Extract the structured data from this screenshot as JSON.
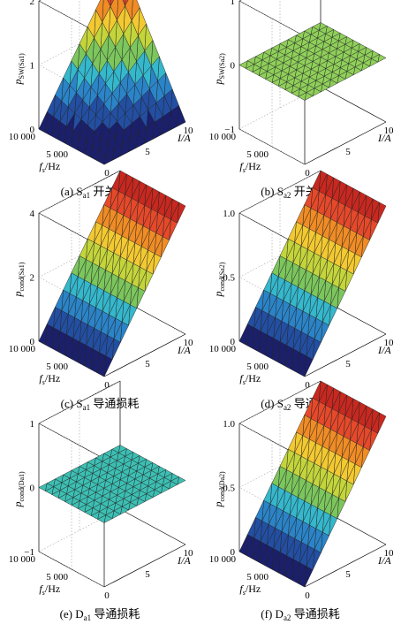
{
  "chart_data": [
    {
      "panel": "a",
      "type": "surface",
      "caption_prefix": "(a) S",
      "caption_sub": "a1",
      "caption_suffix": " 开关损耗",
      "zlabel_main": "p",
      "zlabel_sub": "SW(Sa1)",
      "xlabel": "I/A",
      "ylabel_main": "f",
      "ylabel_sub": "s",
      "ylabel_unit": "/Hz",
      "x_ticks": [
        "0",
        "5",
        "10"
      ],
      "y_ticks": [
        "10 000",
        "5 000"
      ],
      "z_ticks": [
        "0",
        "1",
        "2"
      ],
      "x_range": [
        0,
        10
      ],
      "y_range": [
        0,
        10000
      ],
      "z_range": [
        0,
        2
      ],
      "colormap": [
        "#1a1f6e",
        "#234fa3",
        "#2b84c8",
        "#35b7cc",
        "#7cc65d",
        "#c4d53c",
        "#f3c932",
        "#f08c25",
        "#e6492a",
        "#c8281f"
      ],
      "surface": {
        "formula": "z = 0.2 * I * fs / 10000",
        "z_at_I0_fs0": 0,
        "z_at_I10_fs0": 0,
        "z_at_I0_fs10000": 0,
        "z_at_I10_fs10000": 2.0
      }
    },
    {
      "panel": "b",
      "type": "surface",
      "caption_prefix": "(b) S",
      "caption_sub": "a2",
      "caption_suffix": " 开关损耗",
      "zlabel_main": "p",
      "zlabel_sub": "SW(Sa2)",
      "xlabel": "I/A",
      "ylabel_main": "f",
      "ylabel_sub": "s",
      "ylabel_unit": "/Hz",
      "x_ticks": [
        "0",
        "5",
        "10"
      ],
      "y_ticks": [
        "10 000",
        "5 000"
      ],
      "z_ticks": [
        "−1",
        "0",
        "1"
      ],
      "x_range": [
        0,
        10
      ],
      "y_range": [
        0,
        10000
      ],
      "z_range": [
        -1,
        1
      ],
      "colormap": [
        "#8fcf5a"
      ],
      "surface": {
        "formula": "z = 0",
        "constant": 0
      }
    },
    {
      "panel": "c",
      "type": "surface",
      "caption_prefix": "(c) S",
      "caption_sub": "a1",
      "caption_suffix": " 导通损耗",
      "zlabel_main": "p",
      "zlabel_sub": "cond(Sa1)",
      "xlabel": "I/A",
      "ylabel_main": "f",
      "ylabel_sub": "s",
      "ylabel_unit": "/Hz",
      "x_ticks": [
        "0",
        "5",
        "10"
      ],
      "y_ticks": [
        "10 000",
        "5 000"
      ],
      "z_ticks": [
        "0",
        "2",
        "4"
      ],
      "x_range": [
        0,
        10
      ],
      "y_range": [
        0,
        10000
      ],
      "z_range": [
        0,
        4
      ],
      "colormap": [
        "#1a1f6e",
        "#234fa3",
        "#2b84c8",
        "#35b7cc",
        "#7cc65d",
        "#c4d53c",
        "#f3c932",
        "#f08c25",
        "#e6492a",
        "#c8281f"
      ],
      "surface": {
        "formula": "z = 0.4 * I",
        "z_at_I0": 0,
        "z_at_I10": 4.0
      }
    },
    {
      "panel": "d",
      "type": "surface",
      "caption_prefix": "(d) S",
      "caption_sub": "a2",
      "caption_suffix": " 导通损耗",
      "zlabel_main": "p",
      "zlabel_sub": "cond(Sa2)",
      "xlabel": "I/A",
      "ylabel_main": "f",
      "ylabel_sub": "s",
      "ylabel_unit": "/Hz",
      "x_ticks": [
        "0",
        "5",
        "10"
      ],
      "y_ticks": [
        "10 000",
        "5 000"
      ],
      "z_ticks": [
        "0",
        "0.5",
        "1.0"
      ],
      "x_range": [
        0,
        10
      ],
      "y_range": [
        0,
        10000
      ],
      "z_range": [
        0,
        1.0
      ],
      "colormap": [
        "#1a1f6e",
        "#234fa3",
        "#2b84c8",
        "#35b7cc",
        "#7cc65d",
        "#c4d53c",
        "#f3c932",
        "#f08c25",
        "#e6492a",
        "#c8281f"
      ],
      "surface": {
        "formula": "z = 0.1 * I",
        "z_at_I0": 0,
        "z_at_I10": 1.0
      }
    },
    {
      "panel": "e",
      "type": "surface",
      "caption_prefix": "(e) D",
      "caption_sub": "a1",
      "caption_suffix": " 导通损耗",
      "zlabel_main": "p",
      "zlabel_sub": "cond(Da1)",
      "xlabel": "I/A",
      "ylabel_main": "f",
      "ylabel_sub": "s",
      "ylabel_unit": "/Hz",
      "x_ticks": [
        "0",
        "5",
        "10"
      ],
      "y_ticks": [
        "10 000",
        "5 000"
      ],
      "z_ticks": [
        "−1",
        "0",
        "1"
      ],
      "x_range": [
        0,
        10
      ],
      "y_range": [
        0,
        10000
      ],
      "z_range": [
        -1,
        1
      ],
      "colormap": [
        "#3dbfb3"
      ],
      "surface": {
        "formula": "z = 0",
        "constant": 0
      }
    },
    {
      "panel": "f",
      "type": "surface",
      "caption_prefix": "(f) D",
      "caption_sub": "a2",
      "caption_suffix": " 导通损耗",
      "zlabel_main": "p",
      "zlabel_sub": "cond(Da2)",
      "xlabel": "I/A",
      "ylabel_main": "f",
      "ylabel_sub": "s",
      "ylabel_unit": "/Hz",
      "x_ticks": [
        "0",
        "5",
        "10"
      ],
      "y_ticks": [
        "10 000",
        "5 000"
      ],
      "z_ticks": [
        "0",
        "0.5",
        "1.0"
      ],
      "x_range": [
        0,
        10
      ],
      "y_range": [
        0,
        10000
      ],
      "z_range": [
        0,
        1.0
      ],
      "colormap": [
        "#1a1f6e",
        "#234fa3",
        "#2b84c8",
        "#35b7cc",
        "#7cc65d",
        "#c4d53c",
        "#f3c932",
        "#f08c25",
        "#e6492a",
        "#c8281f"
      ],
      "surface": {
        "formula": "z = 0.1 * I",
        "z_at_I0": 0,
        "z_at_I10": 1.0
      }
    }
  ]
}
